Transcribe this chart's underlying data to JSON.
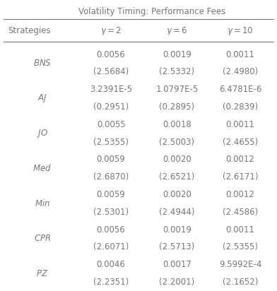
{
  "title": "Volatility Timing: Performance Fees",
  "col_headers": [
    "Strategies",
    "$\\gamma = 2$",
    "$\\gamma = 6$",
    "$\\gamma = 10$"
  ],
  "rows": [
    {
      "strategy": "$BNS$",
      "values": [
        "0.0056",
        "0.0019",
        "0.0011"
      ],
      "tstat": [
        "(2.5684)",
        "(2.5332)",
        "(2.4980)"
      ]
    },
    {
      "strategy": "$AJ$",
      "values": [
        "3.2391E-5",
        "1.0797E-5",
        "6.4781E-6"
      ],
      "tstat": [
        "(0.2951)",
        "(0.2895)",
        "(0.2839)"
      ]
    },
    {
      "strategy": "$JO$",
      "values": [
        "0.0055",
        "0.0018",
        "0.0011"
      ],
      "tstat": [
        "(2.5355)",
        "(2.5003)",
        "(2.4655)"
      ]
    },
    {
      "strategy": "$Med$",
      "values": [
        "0.0059",
        "0.0020",
        "0.0012"
      ],
      "tstat": [
        "(2.6870)",
        "(2.6521)",
        "(2.6171)"
      ]
    },
    {
      "strategy": "$Min$",
      "values": [
        "0.0059",
        "0.0020",
        "0.0012"
      ],
      "tstat": [
        "(2.5301)",
        "(2.4944)",
        "(2.4586)"
      ]
    },
    {
      "strategy": "$CPR$",
      "values": [
        "0.0056",
        "0.0019",
        "0.0011"
      ],
      "tstat": [
        "(2.6071)",
        "(2.5713)",
        "(2.5355)"
      ]
    },
    {
      "strategy": "$PZ$",
      "values": [
        "0.0046",
        "0.0017",
        "9.5992E-4"
      ],
      "tstat": [
        "(2.2351)",
        "(2.2001)",
        "(2.1652)"
      ]
    }
  ],
  "figsize": [
    3.92,
    4.12
  ],
  "dpi": 100,
  "font_size": 8.5,
  "header_font_size": 8.5,
  "title_font_size": 8.5,
  "text_color": "#777777"
}
